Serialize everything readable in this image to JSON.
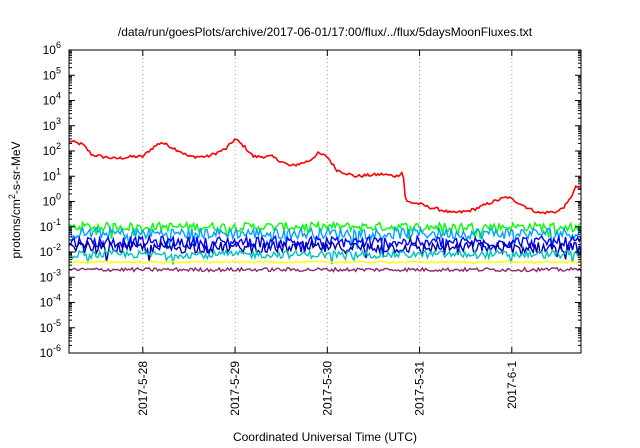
{
  "chart_data": {
    "type": "line",
    "title": "/data/run/goesPlots/archive/2017-06-01/17:00/flux/../flux/5daysMoonFluxes.txt",
    "xlabel": "Coordinated Universal Time (UTC)",
    "ylabel_main": "protons/cm",
    "ylabel_sup": "2",
    "ylabel_rest": "-s-sr-MeV",
    "y_scale": "log",
    "ylim": [
      1e-06,
      1000000.0
    ],
    "y_ticks": [
      {
        "base": "10",
        "exp": "-6",
        "value": 1e-06
      },
      {
        "base": "10",
        "exp": "-5",
        "value": 1e-05
      },
      {
        "base": "10",
        "exp": "-4",
        "value": 0.0001
      },
      {
        "base": "10",
        "exp": "-3",
        "value": 0.001
      },
      {
        "base": "10",
        "exp": "-2",
        "value": 0.01
      },
      {
        "base": "10",
        "exp": "-1",
        "value": 0.1
      },
      {
        "base": "10",
        "exp": "0",
        "value": 1
      },
      {
        "base": "10",
        "exp": "1",
        "value": 10
      },
      {
        "base": "10",
        "exp": "2",
        "value": 100
      },
      {
        "base": "10",
        "exp": "3",
        "value": 1000
      },
      {
        "base": "10",
        "exp": "4",
        "value": 10000
      },
      {
        "base": "10",
        "exp": "5",
        "value": 100000
      },
      {
        "base": "10",
        "exp": "6",
        "value": 1000000
      }
    ],
    "x_unit": "days from 2017-05-27 00:00",
    "xlim": [
      0.2,
      5.75
    ],
    "x_ticks": [
      {
        "label": "2017-5-28",
        "value": 1
      },
      {
        "label": "2017-5-29",
        "value": 2
      },
      {
        "label": "2017-5-30",
        "value": 3
      },
      {
        "label": "2017-5-31",
        "value": 4
      },
      {
        "label": "2017-6-1",
        "value": 5
      }
    ],
    "grid": "vertical dotted at x ticks",
    "series": [
      {
        "color": "#ff0000",
        "noise": 0.12,
        "points": [
          [
            0.2,
            250
          ],
          [
            0.35,
            180
          ],
          [
            0.45,
            70
          ],
          [
            0.7,
            50
          ],
          [
            0.9,
            60
          ],
          [
            1.0,
            60
          ],
          [
            1.1,
            130
          ],
          [
            1.2,
            220
          ],
          [
            1.3,
            150
          ],
          [
            1.4,
            100
          ],
          [
            1.5,
            60
          ],
          [
            1.7,
            60
          ],
          [
            1.9,
            120
          ],
          [
            2.0,
            300
          ],
          [
            2.1,
            150
          ],
          [
            2.2,
            60
          ],
          [
            2.4,
            60
          ],
          [
            2.6,
            25
          ],
          [
            2.8,
            40
          ],
          [
            2.9,
            80
          ],
          [
            3.0,
            60
          ],
          [
            3.1,
            18
          ],
          [
            3.3,
            10
          ],
          [
            3.6,
            12
          ],
          [
            3.75,
            10
          ],
          [
            3.82,
            15
          ],
          [
            3.85,
            1.0
          ],
          [
            4.0,
            0.8
          ],
          [
            4.1,
            0.6
          ],
          [
            4.2,
            0.5
          ],
          [
            4.35,
            0.35
          ],
          [
            4.5,
            0.4
          ],
          [
            4.6,
            0.5
          ],
          [
            4.8,
            1.0
          ],
          [
            4.95,
            1.5
          ],
          [
            5.05,
            1.0
          ],
          [
            5.2,
            0.5
          ],
          [
            5.3,
            0.35
          ],
          [
            5.5,
            0.4
          ],
          [
            5.6,
            0.8
          ],
          [
            5.7,
            4
          ],
          [
            5.75,
            3
          ]
        ]
      },
      {
        "color": "#00ff00",
        "noise": 0.35,
        "points": [
          [
            0.2,
            0.1
          ],
          [
            5.75,
            0.1
          ]
        ]
      },
      {
        "color": "#00a0ff",
        "noise": 0.45,
        "points": [
          [
            0.2,
            0.055
          ],
          [
            5.75,
            0.055
          ]
        ]
      },
      {
        "color": "#0000ff",
        "noise": 0.45,
        "points": [
          [
            0.2,
            0.025
          ],
          [
            5.75,
            0.025
          ]
        ]
      },
      {
        "color": "#0000b0",
        "noise": 0.45,
        "points": [
          [
            0.2,
            0.015
          ],
          [
            5.75,
            0.015
          ]
        ]
      },
      {
        "color": "#00c0c0",
        "noise": 0.3,
        "points": [
          [
            0.2,
            0.008
          ],
          [
            5.75,
            0.008
          ]
        ]
      },
      {
        "color": "#ffff00",
        "noise": 0.08,
        "points": [
          [
            0.2,
            0.004
          ],
          [
            5.75,
            0.004
          ]
        ]
      },
      {
        "color": "#8b2a6e",
        "noise": 0.15,
        "points": [
          [
            0.2,
            0.002
          ],
          [
            5.75,
            0.002
          ]
        ]
      }
    ]
  }
}
